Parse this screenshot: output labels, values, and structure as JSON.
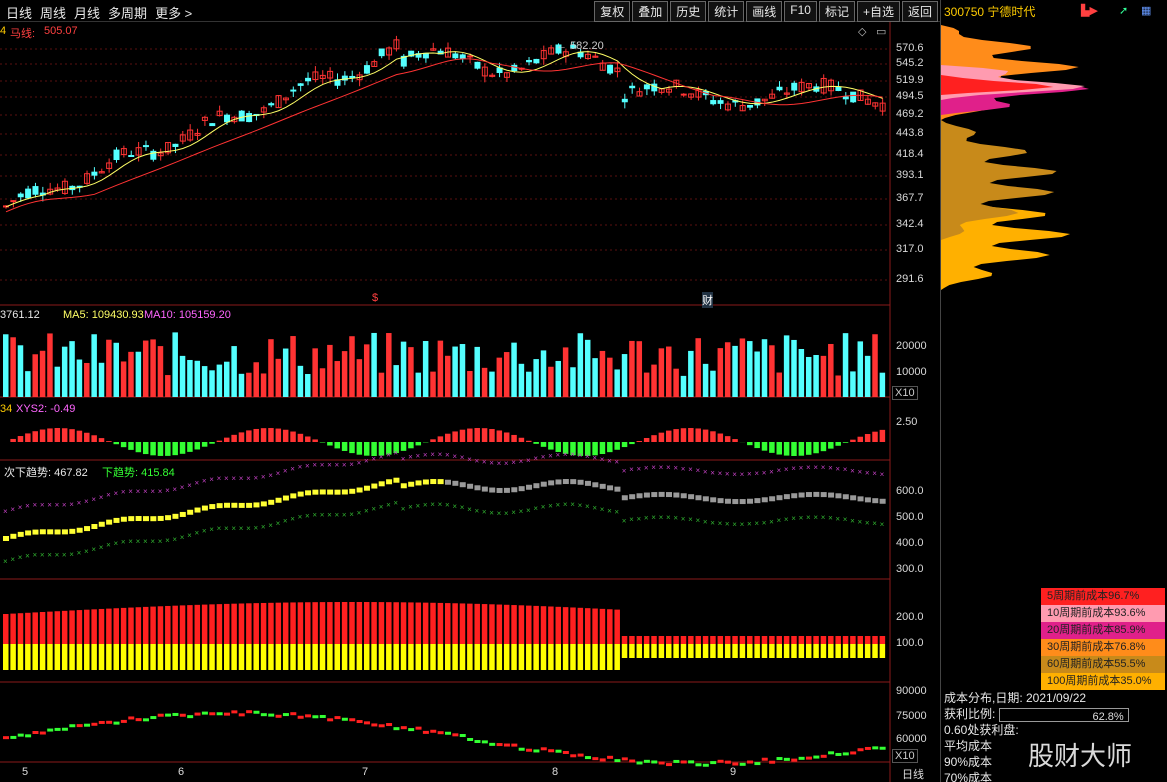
{
  "toolbar": {
    "periods": [
      "日线",
      "周线",
      "月线",
      "多周期",
      "更多 >"
    ],
    "buttons": [
      "复权",
      "叠加",
      "历史",
      "统计",
      "画线",
      "F10",
      "标记",
      "+自选",
      "返回"
    ]
  },
  "price_panel": {
    "ma_label": "4",
    "ma_name": "马线:",
    "ma_value": "505.07",
    "high_marker": "582.20",
    "marker_s": "$",
    "marker_cai": "财",
    "axis": [
      "570.6",
      "545.2",
      "519.9",
      "494.5",
      "469.2",
      "443.8",
      "418.4",
      "393.1",
      "367.7",
      "342.4",
      "317.0",
      "291.6"
    ]
  },
  "volume_panel": {
    "v_label": "3761.12",
    "ma5_label": "MA5: 109430.93",
    "ma10_label": "MA10: 105159.20",
    "axis": [
      "20000",
      "10000"
    ],
    "unit": "X10"
  },
  "xys_panel": {
    "label_prefix": "34",
    "label": "XYS2: -0.49",
    "axis": [
      "2.50"
    ]
  },
  "trend_panel": {
    "label1": "次下趋势: 467.82",
    "label2": "下趋势: 415.84",
    "axis": [
      "600.0",
      "500.0",
      "400.0",
      "300.0"
    ]
  },
  "bar_panel": {
    "axis": [
      "200.0",
      "100.0"
    ]
  },
  "bottom_panel": {
    "axis": [
      "90000",
      "75000",
      "60000"
    ],
    "unit": "X10"
  },
  "x_axis": [
    "5",
    "6",
    "7",
    "8",
    "9"
  ],
  "x_axis_right": "日线",
  "right_panel": {
    "title": "300750 宁德时代",
    "legend": [
      {
        "label": "5周期前成本96.7%",
        "color": "#ff2020"
      },
      {
        "label": "10周期前成本93.6%",
        "color": "#ff9bb0"
      },
      {
        "label": "20周期前成本85.9%",
        "color": "#e0208a"
      },
      {
        "label": "30周期前成本76.8%",
        "color": "#ff8c1a"
      },
      {
        "label": "60周期前成本55.5%",
        "color": "#c88a1a"
      },
      {
        "label": "100周期前成本35.0%",
        "color": "#ffb000"
      }
    ],
    "info_date": "成本分布,日期: 2021/09/22",
    "profit_label": "获利比例:",
    "profit_value": "62.8%",
    "profit_fraction": 0.628,
    "line3": "0.60处获利盘:",
    "line4": "平均成本",
    "line5": "90%成本",
    "line6": "70%成本",
    "watermark": "股财大师"
  }
}
